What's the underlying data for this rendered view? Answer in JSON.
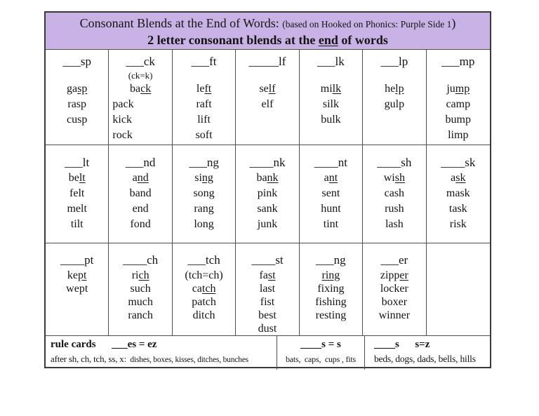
{
  "colors": {
    "banner_bg": "#c9b2e5",
    "border": "#4f4f4f"
  },
  "title": {
    "line1_main": "Consonant Blends at the End of Words: ",
    "line1_note": "(based on Hooked on Phonics: Purple Side 1",
    "line1_close": ")",
    "line2_pre": "2 letter consonant blends at the ",
    "line2_underline": "end",
    "line2_post": " of words"
  },
  "grid": {
    "rows": [
      [
        {
          "blend": "___sp",
          "note": "",
          "words": [
            "ga[sp]",
            "rasp",
            "cusp"
          ]
        },
        {
          "blend": "___ck",
          "note": "(ck=k)",
          "left_rest": true,
          "words": [
            "ba[ck]",
            "pack",
            "kick",
            "rock"
          ]
        },
        {
          "blend": "___ft",
          "note": "",
          "words": [
            "le[ft]",
            "raft",
            "lift",
            "soft"
          ]
        },
        {
          "blend": "_____lf",
          "note": "",
          "words": [
            "se[lf]",
            "elf"
          ]
        },
        {
          "blend": "___lk",
          "note": "",
          "words": [
            "mi[lk]",
            "silk",
            "bulk"
          ]
        },
        {
          "blend": "___lp",
          "note": "",
          "words": [
            "he[lp]",
            "gulp"
          ]
        },
        {
          "blend": "___mp",
          "note": "",
          "words": [
            "ju[mp]",
            "camp",
            "bump",
            "limp"
          ]
        }
      ],
      [
        {
          "blend": "___lt",
          "words": [
            "be[lt]",
            "felt",
            "melt",
            "tilt"
          ]
        },
        {
          "blend": "___nd",
          "words": [
            "a[nd]",
            "band",
            "end",
            "fond"
          ]
        },
        {
          "blend": "___ng",
          "words": [
            "si[ng]",
            "song",
            "rang",
            "long"
          ]
        },
        {
          "blend": "____nk",
          "words": [
            "ba[nk]",
            "pink",
            "sank",
            "junk"
          ]
        },
        {
          "blend": "____nt",
          "words": [
            "a[nt]",
            "sent",
            "hunt",
            "tint"
          ]
        },
        {
          "blend": "____sh",
          "words": [
            "wi[sh]",
            "cash",
            "rush",
            "lash"
          ]
        },
        {
          "blend": "____sk",
          "words": [
            "a[sk]",
            "mask",
            "task",
            "risk"
          ]
        }
      ],
      [
        {
          "blend": "____pt",
          "words": [
            "ke[pt]",
            "wept"
          ]
        },
        {
          "blend": "____ch",
          "words": [
            "ri[ch]",
            "such",
            "much",
            "ranch"
          ]
        },
        {
          "blend": "___tch",
          "words": [
            "(tch=ch)",
            "ca[tch]",
            "patch",
            "ditch"
          ]
        },
        {
          "blend": "____st",
          "words": [
            "fa[st]",
            "last",
            "fist",
            "best",
            "dust"
          ]
        },
        {
          "blend": "___ng",
          "words": [
            "[ring]",
            "fixing",
            "fishing",
            "resting"
          ]
        },
        {
          "blend": "___er",
          "words": [
            "zipp[er]",
            "locker",
            "boxer",
            "winner"
          ]
        },
        {
          "blend": "",
          "words": []
        }
      ]
    ]
  },
  "rules": {
    "cells": [
      {
        "title": "rule cards      ___es = ez",
        "body_lead": "after sh, ch, tch, ss, x:",
        "body_rest": "  dishes, boxes, kisses, ditches, bunches"
      },
      {
        "title": "____s = s",
        "body_lead": "",
        "body_rest": "bats,  caps,  cups , fits"
      },
      {
        "title": "____s      s=z",
        "body_lead": "beds, dogs, dads, bells, hills",
        "body_rest": ""
      }
    ]
  }
}
